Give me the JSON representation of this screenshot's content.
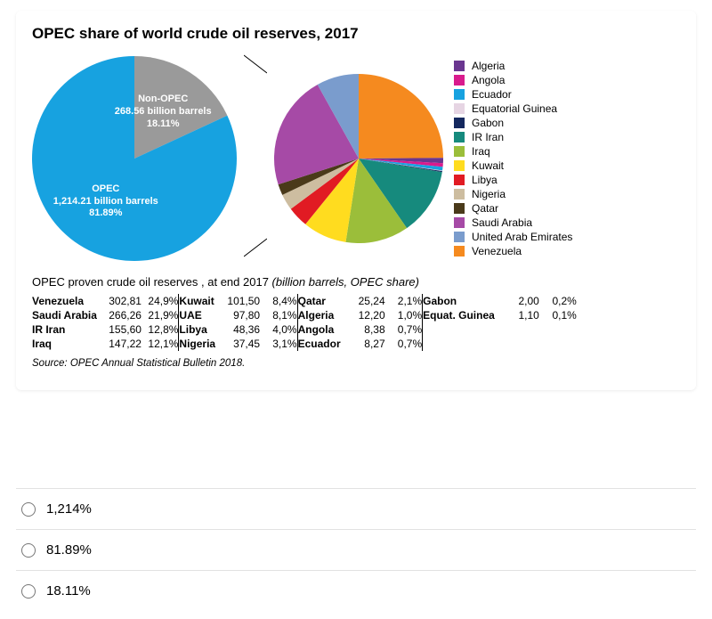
{
  "title": "OPEC share of world crude oil reserves, 2017",
  "pie1": {
    "type": "pie",
    "diameter": 230,
    "slices": [
      {
        "label": "Non-OPEC",
        "line2": "268.56 billion barrels",
        "pct": "18.11%",
        "value": 18.11,
        "color": "#9a9a9a"
      },
      {
        "label": "OPEC",
        "line2": "1,214.21 billion barrels",
        "pct": "81.89%",
        "value": 81.89,
        "color": "#17a2e0"
      }
    ]
  },
  "pie2": {
    "type": "pie",
    "diameter": 190,
    "slices": [
      {
        "label": "Venezuela",
        "value": 24.9,
        "color": "#f58a1f"
      },
      {
        "label": "Algeria",
        "value": 1.0,
        "color": "#6a3690"
      },
      {
        "label": "Angola",
        "value": 0.7,
        "color": "#d91b8d"
      },
      {
        "label": "Ecuador",
        "value": 0.7,
        "color": "#17a2e0"
      },
      {
        "label": "Equatorial Guinea",
        "value": 0.1,
        "color": "#e6d5e3"
      },
      {
        "label": "Gabon",
        "value": 0.2,
        "color": "#14285e"
      },
      {
        "label": "IR Iran",
        "value": 12.8,
        "color": "#168a7d"
      },
      {
        "label": "Iraq",
        "value": 12.1,
        "color": "#9bbe3a"
      },
      {
        "label": "Kuwait",
        "value": 8.4,
        "color": "#ffdc1f"
      },
      {
        "label": "Libya",
        "value": 4.0,
        "color": "#e11b23"
      },
      {
        "label": "Nigeria",
        "value": 3.1,
        "color": "#cdbda0"
      },
      {
        "label": "Qatar",
        "value": 2.1,
        "color": "#4a3a1a"
      },
      {
        "label": "Saudi Arabia",
        "value": 21.9,
        "color": "#a64aa6"
      },
      {
        "label": "United Arab Emirates",
        "value": 8.1,
        "color": "#7a9ccd"
      }
    ]
  },
  "legend": [
    {
      "label": "Algeria",
      "color": "#6a3690"
    },
    {
      "label": "Angola",
      "color": "#d91b8d"
    },
    {
      "label": "Ecuador",
      "color": "#17a2e0"
    },
    {
      "label": "Equatorial Guinea",
      "color": "#e6d5e3"
    },
    {
      "label": "Gabon",
      "color": "#14285e"
    },
    {
      "label": "IR Iran",
      "color": "#168a7d"
    },
    {
      "label": "Iraq",
      "color": "#9bbe3a"
    },
    {
      "label": "Kuwait",
      "color": "#ffdc1f"
    },
    {
      "label": "Libya",
      "color": "#e11b23"
    },
    {
      "label": "Nigeria",
      "color": "#cdbda0"
    },
    {
      "label": "Qatar",
      "color": "#4a3a1a"
    },
    {
      "label": "Saudi Arabia",
      "color": "#a64aa6"
    },
    {
      "label": "United Arab Emirates",
      "color": "#7a9ccd"
    },
    {
      "label": "Venezuela",
      "color": "#f58a1f"
    }
  ],
  "table": {
    "title_main": "OPEC proven crude oil reserves , at end 2017 ",
    "title_sub": "(billion barrels, OPEC share)",
    "rows": [
      [
        "Venezuela",
        "302,81",
        "24,9%",
        "Kuwait",
        "101,50",
        "8,4%",
        "Qatar",
        "25,24",
        "2,1%",
        "Gabon",
        "2,00",
        "0,2%"
      ],
      [
        "Saudi Arabia",
        "266,26",
        "21,9%",
        "UAE",
        "97,80",
        "8,1%",
        "Algeria",
        "12,20",
        "1,0%",
        "Equat. Guinea",
        "1,10",
        "0,1%"
      ],
      [
        "IR Iran",
        "155,60",
        "12,8%",
        "Libya",
        "48,36",
        "4,0%",
        "Angola",
        "8,38",
        "0,7%",
        "",
        "",
        ""
      ],
      [
        "Iraq",
        "147,22",
        "12,1%",
        "Nigeria",
        "37,45",
        "3,1%",
        "Ecuador",
        "8,27",
        "0,7%",
        "",
        "",
        ""
      ]
    ]
  },
  "source": "Source: OPEC Annual Statistical Bulletin 2018.",
  "options": [
    {
      "label": "1,214%"
    },
    {
      "label": "81.89%"
    },
    {
      "label": "18.11%"
    }
  ]
}
